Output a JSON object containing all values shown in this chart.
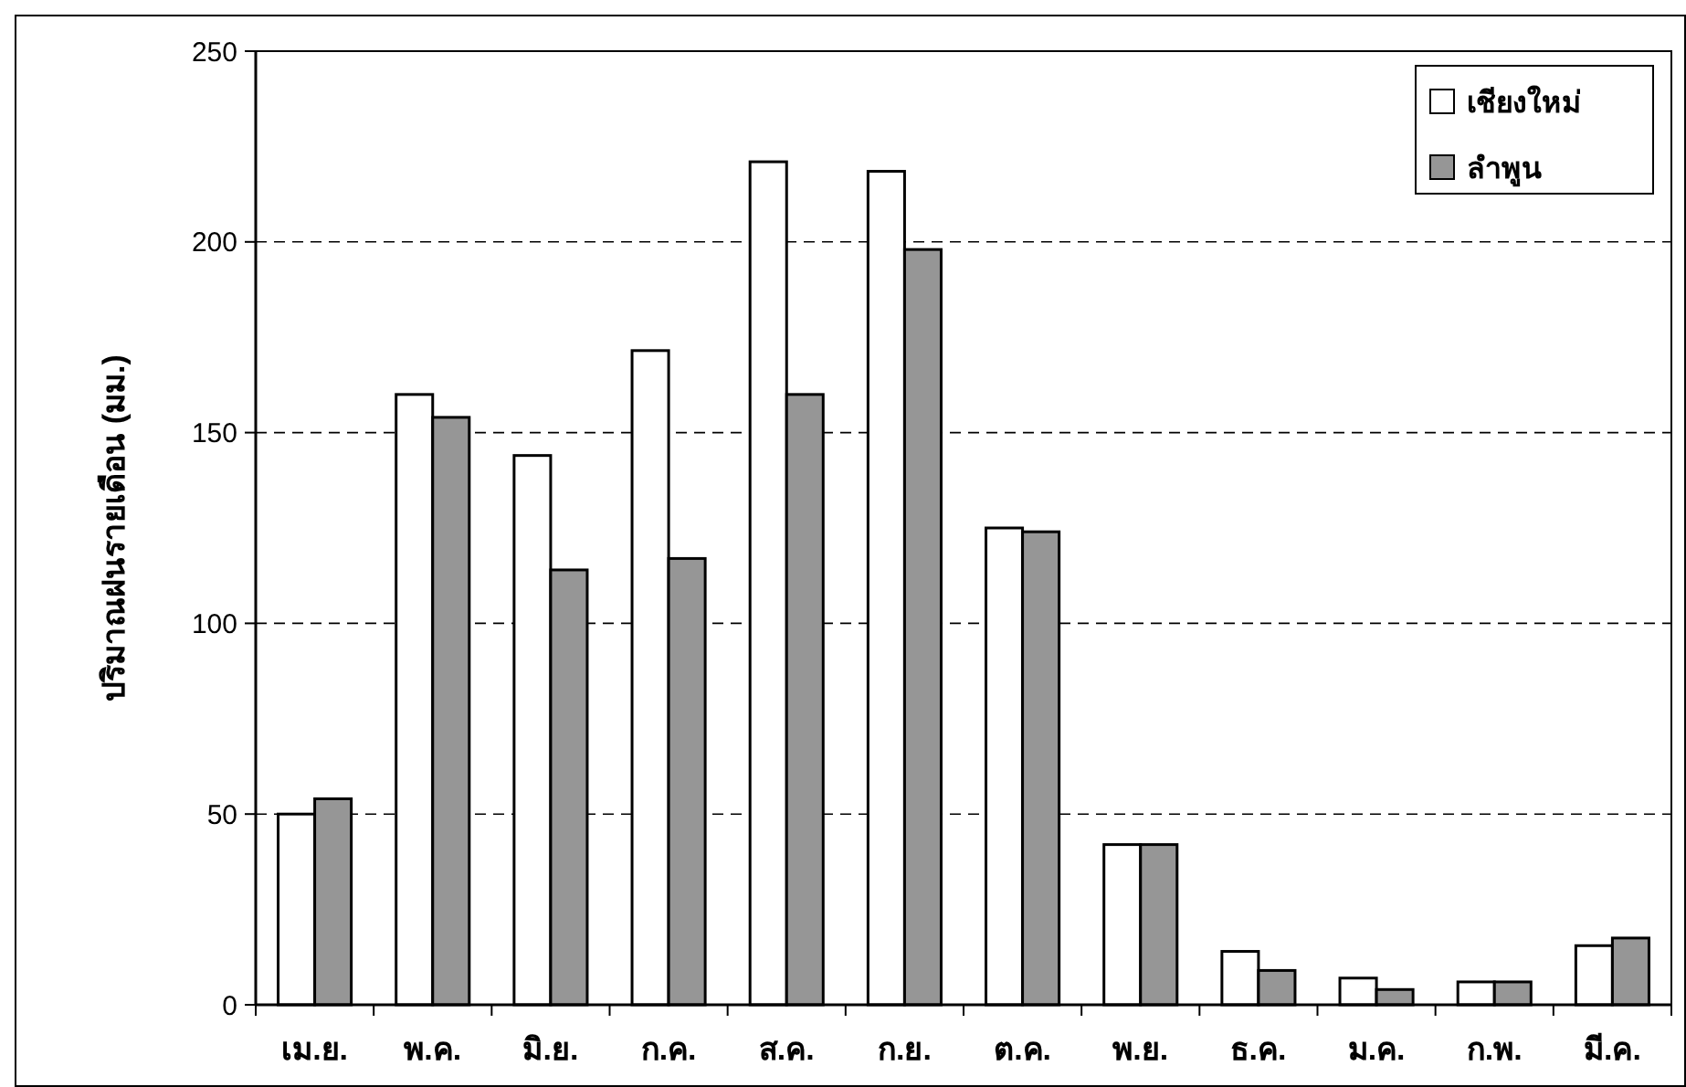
{
  "chart_data": {
    "type": "bar",
    "ylabel": "ปริมาณฝนรายเดือน (มม.)",
    "categories": [
      "เม.ย.",
      "พ.ค.",
      "มิ.ย.",
      "ก.ค.",
      "ส.ค.",
      "ก.ย.",
      "ต.ค.",
      "พ.ย.",
      "ธ.ค.",
      "ม.ค.",
      "ก.พ.",
      "มี.ค."
    ],
    "series": [
      {
        "name": "เชียงใหม่",
        "color": "#ffffff",
        "values": [
          50,
          160,
          144,
          171.5,
          221,
          218.5,
          125,
          42,
          14,
          7,
          6,
          15.5
        ]
      },
      {
        "name": "ลำพูน",
        "color": "#969696",
        "values": [
          54,
          154,
          114,
          117,
          160,
          198,
          124,
          42,
          9,
          4,
          6,
          17.5
        ]
      }
    ],
    "ylim": [
      0,
      250
    ],
    "yticks": [
      0,
      50,
      100,
      150,
      200,
      250
    ],
    "grid": "y",
    "legend": "top right"
  }
}
